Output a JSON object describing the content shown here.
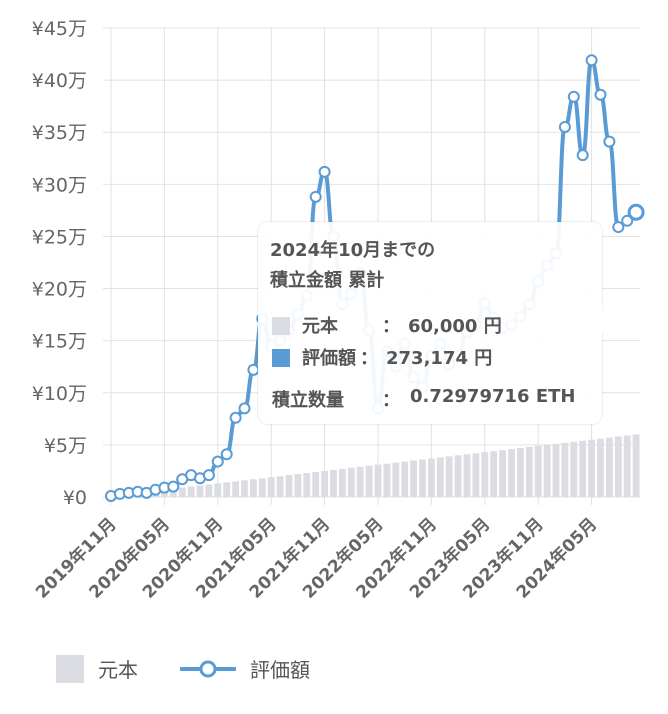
{
  "chart_data": {
    "type": "bar+line",
    "x": [
      "2019年11月",
      "2019年12月",
      "2020年01月",
      "2020年02月",
      "2020年03月",
      "2020年04月",
      "2020年05月",
      "2020年06月",
      "2020年07月",
      "2020年08月",
      "2020年09月",
      "2020年10月",
      "2020年11月",
      "2020年12月",
      "2021年01月",
      "2021年02月",
      "2021年03月",
      "2021年04月",
      "2021年05月",
      "2021年06月",
      "2021年07月",
      "2021年08月",
      "2021年09月",
      "2021年10月",
      "2021年11月",
      "2021年12月",
      "2022年01月",
      "2022年02月",
      "2022年03月",
      "2022年04月",
      "2022年05月",
      "2022年06月",
      "2022年07月",
      "2022年08月",
      "2022年09月",
      "2022年10月",
      "2022年11月",
      "2022年12月",
      "2023年01月",
      "2023年02月",
      "2023年03月",
      "2023年04月",
      "2023年05月",
      "2023年06月",
      "2023年07月",
      "2023年08月",
      "2023年09月",
      "2023年10月",
      "2023年11月",
      "2023年12月",
      "2024年01月",
      "2024年02月",
      "2024年03月",
      "2024年04月",
      "2024年05月",
      "2024年06月",
      "2024年07月",
      "2024年08月",
      "2024年09月",
      "2024年10月"
    ],
    "xtick_labels": [
      "2019年11月",
      "2020年05月",
      "2020年11月",
      "2021年05月",
      "2021年11月",
      "2022年05月",
      "2022年11月",
      "2023年05月",
      "2023年11月",
      "2024年05月"
    ],
    "yticks": [
      "¥0",
      "¥5万",
      "¥10万",
      "¥15万",
      "¥20万",
      "¥25万",
      "¥30万",
      "¥35万",
      "¥40万",
      "¥45万"
    ],
    "ylim": [
      0,
      450000
    ],
    "series": [
      {
        "name": "元本",
        "type": "bar",
        "color": "#dcdde3",
        "values": [
          1000,
          2000,
          3000,
          4000,
          5000,
          6000,
          7000,
          8000,
          9000,
          10000,
          11000,
          12000,
          13000,
          14000,
          15000,
          16000,
          17000,
          18000,
          19000,
          20000,
          21000,
          22000,
          23000,
          24000,
          25000,
          26000,
          27000,
          28000,
          29000,
          30000,
          31000,
          32000,
          33000,
          34000,
          35000,
          36000,
          37000,
          38000,
          39000,
          40000,
          41000,
          42000,
          43000,
          44000,
          45000,
          46000,
          47000,
          48000,
          49000,
          50000,
          51000,
          52000,
          53000,
          54000,
          55000,
          56000,
          57000,
          58000,
          59000,
          60000
        ]
      },
      {
        "name": "評価額",
        "type": "line",
        "color": "#5a9bd5",
        "values": [
          1000,
          3000,
          4000,
          5000,
          4000,
          7000,
          9000,
          10000,
          17000,
          21000,
          18000,
          21000,
          34000,
          41000,
          76000,
          85000,
          122000,
          171000,
          145000,
          150000,
          160000,
          175000,
          193000,
          288000,
          312000,
          250000,
          185000,
          195000,
          215000,
          160000,
          85000,
          140000,
          125000,
          147000,
          115000,
          105000,
          135000,
          147000,
          127000,
          135000,
          158000,
          165000,
          186000,
          172000,
          162000,
          165000,
          173000,
          185000,
          207000,
          222000,
          234000,
          355000,
          384000,
          328000,
          419000,
          386000,
          341000,
          259000,
          265000,
          273174
        ]
      }
    ],
    "tooltip": {
      "title_line1": "2024年10月までの",
      "title_line2": "積立金額 累計",
      "principal_label": "元本",
      "principal_value": "60,000 円",
      "valuation_label": "評価額",
      "valuation_value": "273,174 円",
      "quantity_label": "積立数量",
      "quantity_value": "0.72979716 ETH",
      "separator": "："
    },
    "legend_position": "bottom-left",
    "grid": true
  }
}
